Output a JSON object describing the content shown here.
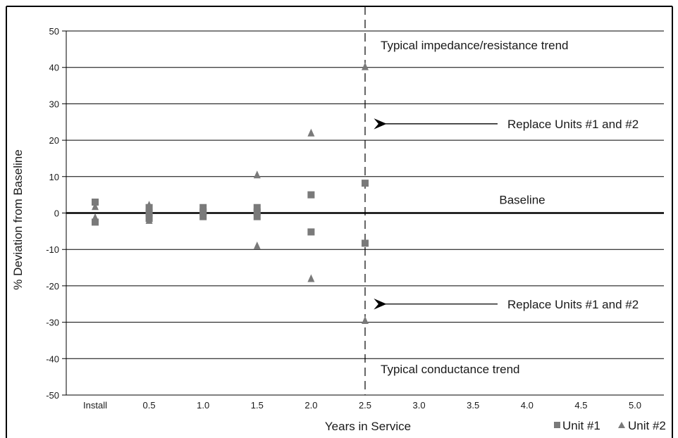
{
  "chart_data": {
    "type": "scatter",
    "title": "",
    "xlabel": "Years in Service",
    "ylabel": "% Deviation from Baseline",
    "ylim": [
      -50,
      50
    ],
    "y_ticks": [
      50,
      40,
      30,
      20,
      10,
      0,
      -10,
      -20,
      -30,
      -40,
      -50
    ],
    "x_ticks": [
      "Install",
      "0.5",
      "1.0",
      "1.5",
      "2.0",
      "2.5",
      "3.0",
      "3.5",
      "4.0",
      "4.5",
      "5.0"
    ],
    "xlim": [
      0,
      5
    ],
    "grid": true,
    "legend_position": "bottom-right",
    "series": [
      {
        "name": "Unit #1",
        "marker": "square",
        "color": "#7a7a7a",
        "points": [
          {
            "x": 0,
            "y": 3
          },
          {
            "x": 0,
            "y": -2.5
          },
          {
            "x": 0.5,
            "y": 1.5
          },
          {
            "x": 0.5,
            "y": -1.5
          },
          {
            "x": 0.5,
            "y": 0
          },
          {
            "x": 1.0,
            "y": 1.5
          },
          {
            "x": 1.0,
            "y": -1
          },
          {
            "x": 1.0,
            "y": 0.3
          },
          {
            "x": 1.5,
            "y": 1.5
          },
          {
            "x": 1.5,
            "y": -1
          },
          {
            "x": 1.5,
            "y": 0.3
          },
          {
            "x": 2.0,
            "y": 5
          },
          {
            "x": 2.0,
            "y": -5.2
          },
          {
            "x": 2.5,
            "y": 8.2
          },
          {
            "x": 2.5,
            "y": -8.3
          }
        ]
      },
      {
        "name": "Unit #2",
        "marker": "triangle",
        "color": "#7a7a7a",
        "points": [
          {
            "x": 0,
            "y": 1.8
          },
          {
            "x": 0,
            "y": -1.2
          },
          {
            "x": 0.5,
            "y": 2.2
          },
          {
            "x": 0.5,
            "y": -2
          },
          {
            "x": 1.0,
            "y": 1
          },
          {
            "x": 1.0,
            "y": -0.5
          },
          {
            "x": 1.5,
            "y": 10.5
          },
          {
            "x": 1.5,
            "y": -9
          },
          {
            "x": 2.0,
            "y": 22
          },
          {
            "x": 2.0,
            "y": -18
          },
          {
            "x": 2.5,
            "y": 40.2
          },
          {
            "x": 2.5,
            "y": -29.5
          }
        ]
      }
    ],
    "reference_lines": [
      {
        "orientation": "horizontal",
        "value": 0,
        "label": "Baseline",
        "style": "solid"
      },
      {
        "orientation": "vertical",
        "value": 2.5,
        "style": "dashed"
      }
    ],
    "annotations": [
      {
        "text": "Typical impedance/resistance trend",
        "x": 2.5,
        "y": 45
      },
      {
        "text": "Replace Units #1 and #2",
        "x": 2.5,
        "y": 24.5,
        "arrow": true
      },
      {
        "text": "Replace Units #1 and #2",
        "x": 2.5,
        "y": -25,
        "arrow": true
      },
      {
        "text": "Typical conductance trend",
        "x": 2.5,
        "y": -44
      }
    ]
  }
}
